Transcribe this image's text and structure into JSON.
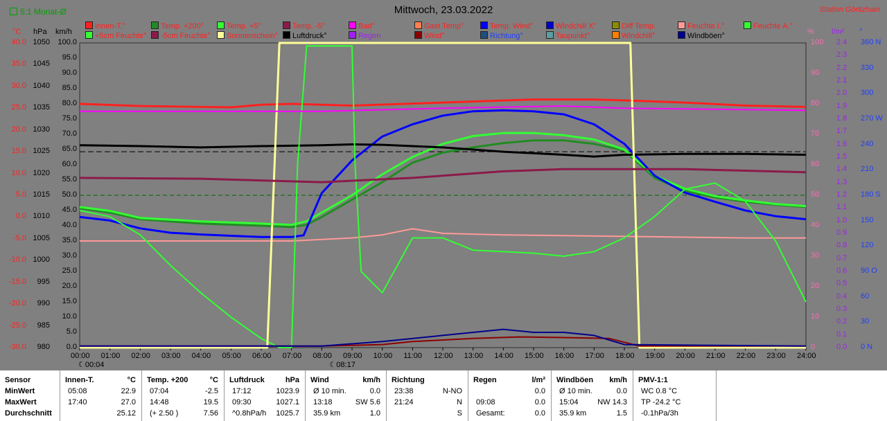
{
  "header": {
    "title": "Mittwoch, 23.03.2022",
    "mode_label": "5:1 Monat-Ø",
    "station": "Station Göritzhain"
  },
  "legend": [
    {
      "label": "Innen-T.°",
      "color": "#ff2020",
      "text_color": "#ff2020"
    },
    {
      "label": "Temp. +200°",
      "color": "#228b22",
      "text_color": "#ff2020"
    },
    {
      "label": "Temp. +5°",
      "color": "#33ff33",
      "text_color": "#ff2020"
    },
    {
      "label": "Temp. -5°",
      "color": "#8b1a4a",
      "text_color": "#ff2020"
    },
    {
      "label": "Bad°",
      "color": "#ff00ff",
      "text_color": "#ff2020"
    },
    {
      "label": "Gast Temp°",
      "color": "#ff7f50",
      "text_color": "#ff2020"
    },
    {
      "label": "Temp. Wind°",
      "color": "#0000ff",
      "text_color": "#ff2020"
    },
    {
      "label": "Windchill X°",
      "color": "#0000cc",
      "text_color": "#ff2020"
    },
    {
      "label": "Diff Temp.",
      "color": "#8b8b00",
      "text_color": "#ff2020"
    },
    {
      "label": "Feuchte I.°",
      "color": "#ff9999",
      "text_color": "#ff2020"
    },
    {
      "label": "Feuchte A.°",
      "color": "#33ff33",
      "text_color": "#ff2020"
    },
    {
      "label": "+5cm Feuchte°",
      "color": "#33ff33",
      "text_color": "#ff2020"
    },
    {
      "label": "-5cm Feuchte°",
      "color": "#8b1a4a",
      "text_color": "#ff2020"
    },
    {
      "label": "Sonnenschein°",
      "color": "#ffff99",
      "text_color": "#ff2020"
    },
    {
      "label": "Luftdruck°",
      "color": "#000000",
      "text_color": "#000000"
    },
    {
      "label": "Regen",
      "color": "#a020f0",
      "text_color": "#a020f0"
    },
    {
      "label": "Wind°",
      "color": "#8b0000",
      "text_color": "#ff2020"
    },
    {
      "label": "Richtung°",
      "color": "#1f4f7f",
      "text_color": "#1f3fff"
    },
    {
      "label": "Taupunkt°",
      "color": "#5f9ea0",
      "text_color": "#ff2020"
    },
    {
      "label": "Windchill°",
      "color": "#ff7f00",
      "text_color": "#ff2020"
    },
    {
      "label": "Windböen°",
      "color": "#00008b",
      "text_color": "#000000"
    }
  ],
  "axes": {
    "temp": {
      "unit": "°C",
      "color": "#ff2020",
      "ticks": [
        "40.0",
        "35.0",
        "30.0",
        "25.0",
        "20.0",
        "15.0",
        "10.0",
        "5.0",
        "0.0",
        "-5.0",
        "-10.0",
        "-15.0",
        "-20.0",
        "-25.0",
        "-30.0"
      ]
    },
    "pressure": {
      "unit": "hPa",
      "color": "#000000",
      "ticks": [
        "1050",
        "1045",
        "1040",
        "1035",
        "1030",
        "1025",
        "1020",
        "1015",
        "1010",
        "1005",
        "1000",
        "995",
        "990",
        "985",
        "980"
      ]
    },
    "wind": {
      "unit": "km/h",
      "color": "#000000",
      "ticks": [
        "100.0",
        "95.0",
        "90.0",
        "85.0",
        "80.0",
        "75.0",
        "70.0",
        "65.0",
        "60.0",
        "55.0",
        "50.0",
        "45.0",
        "40.0",
        "35.0",
        "30.0",
        "25.0",
        "20.0",
        "15.0",
        "10.0",
        "5.0",
        "0.0"
      ]
    },
    "humidity": {
      "unit": "%",
      "color": "#ff69b4",
      "ticks": [
        "100",
        "90",
        "80",
        "70",
        "60",
        "50",
        "40",
        "30",
        "20",
        "10",
        "0"
      ]
    },
    "rain": {
      "unit": "l/m²",
      "color": "#a020f0",
      "ticks": [
        "2.4",
        "2.3",
        "2.2",
        "2.1",
        "2.0",
        "1.9",
        "1.8",
        "1.7",
        "1.6",
        "1.5",
        "1.4",
        "1.3",
        "1.2",
        "1.1",
        "1.0",
        "0.9",
        "0.8",
        "0.7",
        "0.6",
        "0.5",
        "0.4",
        "0.3",
        "0.2",
        "0.1",
        "0.0"
      ]
    },
    "direction": {
      "unit": "°",
      "color": "#1f3fff",
      "ticks": [
        "360 N",
        "330",
        "300",
        "270 W",
        "240",
        "210",
        "180 S",
        "150",
        "120",
        "90 O",
        "60",
        "30",
        "0 N"
      ]
    }
  },
  "time_axis": {
    "ticks": [
      "00:00",
      "01:00",
      "02:00",
      "03:00",
      "04:00",
      "05:00",
      "06:00",
      "07:00",
      "08:00",
      "09:00",
      "10:00",
      "11:00",
      "12:00",
      "13:00",
      "14:00",
      "15:00",
      "16:00",
      "17:00",
      "18:00",
      "19:00",
      "20:00",
      "21:00",
      "22:00",
      "23:00",
      "24:00"
    ],
    "sunrise": "08:17",
    "moon": "00:04"
  },
  "chart_data": {
    "type": "line",
    "title": "Mittwoch, 23.03.2022",
    "xlabel": "",
    "ylabel": "°C",
    "x_unit": "hours",
    "ylim": [
      -30,
      40
    ],
    "series": [
      {
        "name": "Innen-T.°",
        "axis": "temp",
        "color": "#ff2020",
        "points": [
          [
            0,
            26
          ],
          [
            2,
            25.5
          ],
          [
            5,
            25.2
          ],
          [
            6,
            25.8
          ],
          [
            7,
            26
          ],
          [
            9,
            25.6
          ],
          [
            12,
            26.3
          ],
          [
            15,
            27
          ],
          [
            17,
            27
          ],
          [
            18,
            26.8
          ],
          [
            20,
            26.3
          ],
          [
            22,
            25.6
          ],
          [
            24,
            25.3
          ]
        ]
      },
      {
        "name": "Temp. +200°",
        "axis": "temp",
        "color": "#228b22",
        "points": [
          [
            0,
            2
          ],
          [
            1,
            1
          ],
          [
            2,
            -0.5
          ],
          [
            4,
            -1.5
          ],
          [
            6,
            -2
          ],
          [
            7,
            -2.3
          ],
          [
            7.5,
            -1.8
          ],
          [
            8,
            0
          ],
          [
            9,
            4
          ],
          [
            10,
            8
          ],
          [
            11,
            12.5
          ],
          [
            12,
            14.8
          ],
          [
            13,
            16
          ],
          [
            14,
            17
          ],
          [
            15,
            17.6
          ],
          [
            16,
            17.6
          ],
          [
            17,
            16.8
          ],
          [
            18,
            15.3
          ],
          [
            19,
            9
          ],
          [
            20,
            6
          ],
          [
            21,
            4.5
          ],
          [
            22,
            3.5
          ],
          [
            23,
            2.8
          ],
          [
            24,
            2.3
          ]
        ]
      },
      {
        "name": "Temp. +5°",
        "axis": "temp",
        "color": "#33ff33",
        "points": [
          [
            0,
            2.3
          ],
          [
            1,
            1.4
          ],
          [
            2,
            -0.2
          ],
          [
            4,
            -1
          ],
          [
            6,
            -1.5
          ],
          [
            7,
            -1.8
          ],
          [
            7.5,
            -1
          ],
          [
            8,
            1
          ],
          [
            9,
            5
          ],
          [
            10,
            9.8
          ],
          [
            11,
            13.8
          ],
          [
            12,
            16.8
          ],
          [
            13,
            18.6
          ],
          [
            14,
            19.3
          ],
          [
            15,
            19.3
          ],
          [
            16,
            18.8
          ],
          [
            17,
            17.8
          ],
          [
            18,
            15.5
          ],
          [
            19,
            9.5
          ],
          [
            20,
            6.5
          ],
          [
            21,
            4.8
          ],
          [
            22,
            3.8
          ],
          [
            23,
            3
          ],
          [
            24,
            2.5
          ]
        ]
      },
      {
        "name": "Temp. Wind°",
        "axis": "temp",
        "color": "#0000ff",
        "points": [
          [
            0,
            0
          ],
          [
            1,
            -0.8
          ],
          [
            2,
            -2.6
          ],
          [
            3,
            -3.6
          ],
          [
            4,
            -4
          ],
          [
            5,
            -4.3
          ],
          [
            6,
            -4.6
          ],
          [
            7,
            -4.6
          ],
          [
            7.4,
            -4.2
          ],
          [
            8,
            5.5
          ],
          [
            9,
            13
          ],
          [
            10,
            18.5
          ],
          [
            11,
            21.3
          ],
          [
            12,
            23.3
          ],
          [
            13,
            24.3
          ],
          [
            14,
            24.5
          ],
          [
            15,
            24.3
          ],
          [
            16,
            23.6
          ],
          [
            17,
            21.3
          ],
          [
            18,
            16.8
          ],
          [
            19,
            9.5
          ],
          [
            20,
            5.6
          ],
          [
            21,
            3.5
          ],
          [
            22,
            1.5
          ],
          [
            23,
            0.2
          ],
          [
            24,
            -0.5
          ]
        ]
      },
      {
        "name": "Luftdruck°",
        "axis": "pressure",
        "color": "#000000",
        "points": [
          [
            0,
            1026.5
          ],
          [
            2,
            1026.3
          ],
          [
            4,
            1026.0
          ],
          [
            6,
            1026.3
          ],
          [
            8,
            1026.5
          ],
          [
            9,
            1026.7
          ],
          [
            10,
            1026.6
          ],
          [
            12,
            1026.0
          ],
          [
            14,
            1025.0
          ],
          [
            16,
            1024.3
          ],
          [
            17,
            1023.9
          ],
          [
            18,
            1024.3
          ],
          [
            20,
            1024.5
          ],
          [
            22,
            1024.5
          ],
          [
            24,
            1024.3
          ]
        ]
      },
      {
        "name": "Feuchte I.°",
        "axis": "humidity",
        "color": "#ff9999",
        "points": [
          [
            0,
            35
          ],
          [
            4,
            35
          ],
          [
            7,
            35
          ],
          [
            9,
            36
          ],
          [
            10,
            37
          ],
          [
            11,
            39
          ],
          [
            12,
            37.5
          ],
          [
            14,
            37
          ],
          [
            18,
            36.5
          ],
          [
            22,
            36
          ],
          [
            24,
            36
          ]
        ]
      },
      {
        "name": "Feuchte A.°",
        "axis": "humidity",
        "color": "#33ff33",
        "points": [
          [
            0,
            45
          ],
          [
            1,
            43
          ],
          [
            2,
            37
          ],
          [
            3,
            27
          ],
          [
            4,
            18
          ],
          [
            5,
            10
          ],
          [
            6,
            3
          ],
          [
            6.6,
            0
          ],
          [
            7,
            0
          ],
          [
            7.2,
            60
          ],
          [
            7.5,
            99
          ],
          [
            9,
            99
          ],
          [
            9.1,
            60
          ],
          [
            9.3,
            25
          ],
          [
            10,
            18
          ],
          [
            11,
            36
          ],
          [
            12,
            36
          ],
          [
            13,
            32
          ],
          [
            15,
            31
          ],
          [
            16,
            30
          ],
          [
            17,
            31.5
          ],
          [
            18,
            36
          ],
          [
            19,
            43
          ],
          [
            20,
            52
          ],
          [
            21,
            54
          ],
          [
            22,
            48
          ],
          [
            23,
            35
          ],
          [
            24,
            15
          ]
        ]
      },
      {
        "name": "Sonnenschein°",
        "axis": "humidity",
        "color": "#ffff99",
        "points": [
          [
            0,
            0
          ],
          [
            6.2,
            0
          ],
          [
            6.6,
            100
          ],
          [
            18.2,
            100
          ],
          [
            18.5,
            0
          ],
          [
            24,
            0
          ]
        ]
      },
      {
        "name": "Bad°",
        "axis": "temp",
        "color": "#ff00ff",
        "points": [
          [
            0,
            24.3
          ],
          [
            6,
            24.3
          ],
          [
            8,
            24.3
          ],
          [
            12,
            25
          ],
          [
            16,
            25.5
          ],
          [
            18,
            25
          ],
          [
            24,
            24.5
          ]
        ]
      },
      {
        "name": "Temp. -5°",
        "axis": "temp",
        "color": "#8b1a4a",
        "points": [
          [
            0,
            9
          ],
          [
            4,
            8.8
          ],
          [
            8,
            8
          ],
          [
            11,
            9
          ],
          [
            14,
            10.5
          ],
          [
            16,
            11
          ],
          [
            18,
            11
          ],
          [
            20,
            11
          ],
          [
            24,
            10.3
          ]
        ]
      },
      {
        "name": "Wind°",
        "axis": "wind",
        "color": "#8b0000",
        "points": [
          [
            0,
            0.5
          ],
          [
            8,
            0.5
          ],
          [
            10,
            1
          ],
          [
            11,
            2
          ],
          [
            13,
            3
          ],
          [
            14.5,
            3.5
          ],
          [
            16,
            3.3
          ],
          [
            17.5,
            3
          ],
          [
            18.5,
            0.5
          ],
          [
            24,
            0.5
          ]
        ]
      },
      {
        "name": "Windböen°",
        "axis": "wind",
        "color": "#00008b",
        "points": [
          [
            0,
            0.5
          ],
          [
            8,
            0.5
          ],
          [
            10,
            2
          ],
          [
            12,
            4
          ],
          [
            14,
            6
          ],
          [
            15,
            5
          ],
          [
            16,
            5
          ],
          [
            17,
            4
          ],
          [
            18,
            1
          ],
          [
            24,
            0.5
          ]
        ]
      }
    ]
  },
  "stats": {
    "row_labels": [
      "Sensor",
      "MinWert",
      "MaxWert",
      "Durchschnitt"
    ],
    "columns": [
      {
        "title": "Innen-T.",
        "unit": "°C",
        "rows": [
          [
            "05:08",
            "22.9"
          ],
          [
            "17:40",
            "27.0"
          ],
          [
            "",
            "25.12"
          ]
        ]
      },
      {
        "title": "Temp. +200",
        "unit": "°C",
        "rows": [
          [
            "07:04",
            "-2.5"
          ],
          [
            "14:48",
            "19.5"
          ],
          [
            "(+ 2.50 )",
            "7.56"
          ]
        ]
      },
      {
        "title": "Luftdruck",
        "unit": "hPa",
        "rows": [
          [
            "17:12",
            "1023.9"
          ],
          [
            "09:30",
            "1027.1"
          ],
          [
            "^0.8hPa/h",
            "1025.7"
          ]
        ]
      },
      {
        "title": "Wind",
        "unit": "km/h",
        "rows": [
          [
            "Ø 10 min.",
            "0.0"
          ],
          [
            "13:18",
            "SW 5.6"
          ],
          [
            "35.9 km",
            "1.0"
          ]
        ]
      },
      {
        "title": "Richtung",
        "unit": "",
        "rows": [
          [
            "23:38",
            "N-NO"
          ],
          [
            "21:24",
            "N"
          ],
          [
            "",
            "S"
          ]
        ]
      },
      {
        "title": "Regen",
        "unit": "l/m²",
        "rows": [
          [
            "",
            "0.0"
          ],
          [
            "09:08",
            "0.0"
          ],
          [
            "Gesamt:",
            "0.0"
          ]
        ]
      },
      {
        "title": "Windböen",
        "unit": "km/h",
        "rows": [
          [
            "Ø 10 min.",
            "0.0"
          ],
          [
            "15:04",
            "NW 14.3"
          ],
          [
            "35.9 km",
            "1.5"
          ]
        ]
      },
      {
        "title": "PMV-1:1",
        "unit": "",
        "rows": [
          [
            "WC 0.8 °C",
            ""
          ],
          [
            "TP -24.2 °C",
            ""
          ],
          [
            "-0.1hPa/3h",
            ""
          ]
        ]
      }
    ]
  }
}
